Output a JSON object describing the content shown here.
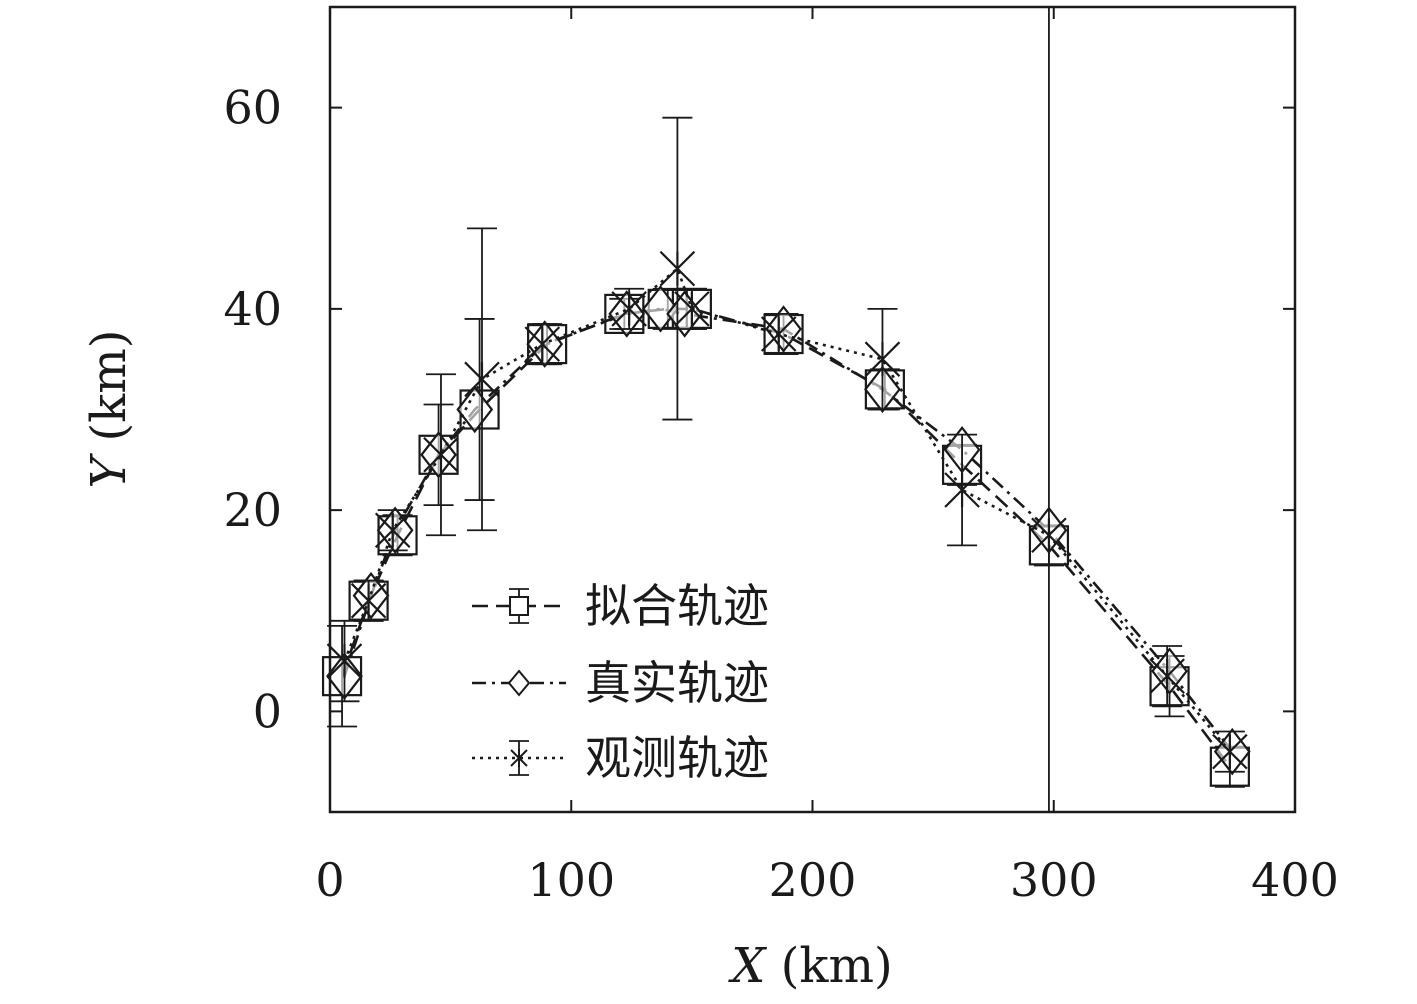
{
  "chart_data": {
    "type": "line",
    "xlabel": "X (km)",
    "ylabel": "Y (km)",
    "xlabel_var": "X",
    "xlabel_unit": " (km)",
    "ylabel_var": "Y",
    "ylabel_unit": " (km)",
    "xlim": [
      0,
      400
    ],
    "ylim": [
      -10,
      70
    ],
    "xticks": [
      0,
      100,
      200,
      300,
      400
    ],
    "yticks": [
      0,
      20,
      40,
      60
    ],
    "grid": false,
    "legend_position": "lower-left",
    "series": [
      {
        "name": "拟合轨迹",
        "marker": "square",
        "linestyle": "dashed",
        "x": [
          5,
          16,
          28,
          45,
          62,
          90,
          122,
          140,
          150,
          188,
          230,
          262,
          298,
          348,
          373
        ],
        "y": [
          3.5,
          11,
          17.5,
          25.5,
          30,
          36.5,
          39.5,
          40,
          40,
          37.5,
          32,
          24.5,
          16.5,
          2.5,
          -5.5
        ],
        "yerr": [
          5,
          2,
          2,
          5,
          9,
          2,
          1.5,
          2,
          2,
          2,
          2,
          2,
          2,
          3,
          2
        ]
      },
      {
        "name": "真实轨迹",
        "marker": "diamond",
        "linestyle": "dashdot",
        "x": [
          6,
          17,
          27,
          45,
          60,
          89,
          123,
          137,
          147,
          188,
          229,
          262,
          298,
          348,
          374
        ],
        "y": [
          3.5,
          11.5,
          18,
          25.5,
          30,
          36.5,
          39.5,
          40,
          39.5,
          38,
          32,
          26,
          18,
          4,
          -4
        ]
      },
      {
        "name": "观测轨迹",
        "marker": "asterisk",
        "linestyle": "dotted",
        "x": [
          6,
          16,
          26,
          46,
          63,
          88,
          124,
          144,
          150,
          186,
          229,
          262,
          298,
          347,
          373
        ],
        "y": [
          5,
          11,
          18,
          25.5,
          33,
          36.5,
          40,
          44,
          40,
          37.5,
          35,
          22,
          17.5,
          3.5,
          -4
        ],
        "yerr": [
          4,
          2,
          2,
          8,
          15,
          2,
          2,
          15,
          2,
          2,
          5,
          5.5,
          60,
          3,
          2
        ]
      }
    ]
  }
}
